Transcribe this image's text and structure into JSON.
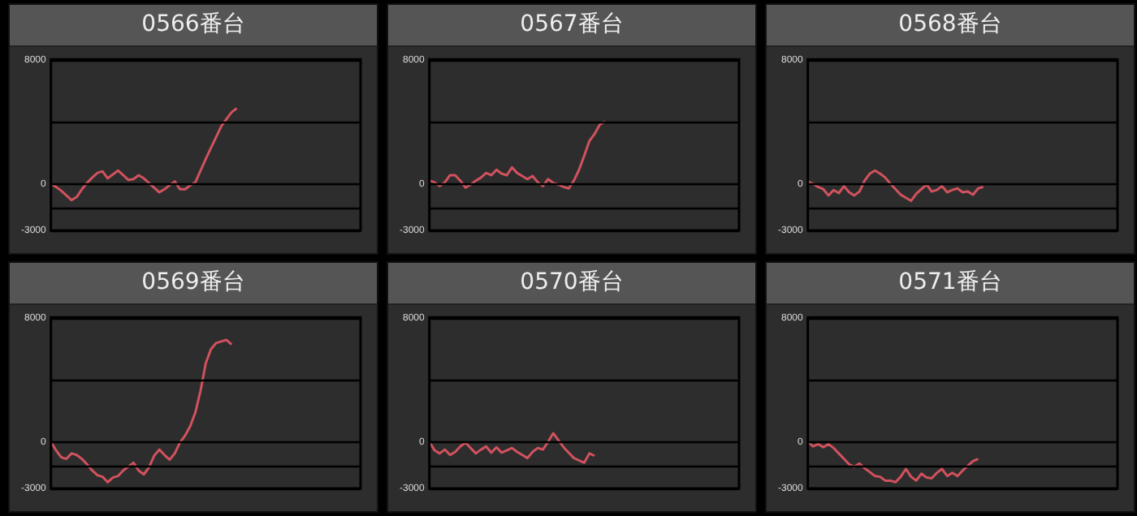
{
  "chart_data": [
    {
      "type": "line",
      "title": "0566番台",
      "categories": [
        null,
        null,
        null,
        null,
        null,
        null,
        null,
        null,
        null,
        null,
        null,
        null,
        null,
        null,
        null,
        null,
        null,
        null,
        null,
        null,
        null,
        null,
        null,
        null,
        null,
        null,
        null,
        null,
        null,
        null,
        null,
        null,
        null,
        null,
        null,
        null,
        null,
        null,
        null,
        null,
        null,
        null,
        null,
        null,
        null,
        null,
        null,
        null,
        null,
        null,
        null,
        null,
        null,
        null,
        null,
        null,
        null,
        null,
        null,
        null,
        null
      ],
      "color": "#d2525e",
      "marker": "none",
      "values": [
        0,
        -200,
        -450,
        -750,
        -1050,
        -850,
        -350,
        50,
        400,
        700,
        800,
        350,
        600,
        850,
        550,
        250,
        300,
        550,
        350,
        50,
        -250,
        -550,
        -350,
        -100,
        150,
        -350,
        -350,
        -100,
        100,
        850,
        1600,
        2300,
        3000,
        3700,
        4150,
        4600,
        4850,
        null,
        null,
        null,
        null,
        null,
        null,
        null,
        null,
        null,
        null,
        null,
        null,
        null,
        null,
        null,
        null,
        null,
        null,
        null,
        null,
        null,
        null,
        null,
        null
      ],
      "ylim": [
        -3000,
        8000
      ],
      "yticks": [
        -3000,
        0,
        8000
      ],
      "ref_lines": [
        {
          "axis": "y",
          "value": 4000,
          "color": "#000000"
        },
        {
          "axis": "y",
          "value": -1500,
          "color": "#000000"
        }
      ],
      "grid": "y",
      "tick_labels": "y"
    },
    {
      "type": "line",
      "title": "0567番台",
      "categories": [
        null,
        null,
        null,
        null,
        null,
        null,
        null,
        null,
        null,
        null,
        null,
        null,
        null,
        null,
        null,
        null,
        null,
        null,
        null,
        null,
        null,
        null,
        null,
        null,
        null,
        null,
        null,
        null,
        null,
        null,
        null,
        null,
        null,
        null,
        null,
        null,
        null,
        null,
        null,
        null,
        null,
        null,
        null,
        null,
        null,
        null,
        null,
        null,
        null,
        null,
        null,
        null,
        null,
        null,
        null,
        null,
        null,
        null,
        null,
        null,
        null
      ],
      "color": "#d2525e",
      "marker": "none",
      "values": [
        200,
        100,
        -150,
        100,
        550,
        550,
        200,
        -250,
        -50,
        200,
        400,
        700,
        550,
        900,
        650,
        550,
        1050,
        700,
        500,
        300,
        500,
        100,
        -150,
        300,
        50,
        -50,
        -200,
        -300,
        200,
        900,
        1800,
        2750,
        3200,
        3800,
        4000,
        null,
        null,
        null,
        null,
        null,
        null,
        null,
        null,
        null,
        null,
        null,
        null,
        null,
        null,
        null,
        null,
        null,
        null,
        null,
        null,
        null,
        null,
        null,
        null,
        null,
        null
      ],
      "ylim": [
        -3000,
        8000
      ],
      "yticks": [
        -3000,
        0,
        8000
      ],
      "ref_lines": [
        {
          "axis": "y",
          "value": 4000,
          "color": "#000000"
        },
        {
          "axis": "y",
          "value": -1500,
          "color": "#000000"
        }
      ],
      "grid": "y",
      "tick_labels": "y"
    },
    {
      "type": "line",
      "title": "0568番台",
      "categories": [
        null,
        null,
        null,
        null,
        null,
        null,
        null,
        null,
        null,
        null,
        null,
        null,
        null,
        null,
        null,
        null,
        null,
        null,
        null,
        null,
        null,
        null,
        null,
        null,
        null,
        null,
        null,
        null,
        null,
        null,
        null,
        null,
        null,
        null,
        null,
        null,
        null,
        null,
        null,
        null,
        null,
        null,
        null,
        null,
        null,
        null,
        null,
        null,
        null,
        null,
        null,
        null,
        null,
        null,
        null,
        null,
        null,
        null,
        null,
        null,
        null
      ],
      "color": "#d2525e",
      "marker": "none",
      "values": [
        150,
        0,
        -200,
        -350,
        -750,
        -400,
        -600,
        -150,
        -550,
        -750,
        -500,
        200,
        650,
        850,
        650,
        400,
        0,
        -350,
        -700,
        -900,
        -1100,
        -650,
        -350,
        -50,
        -500,
        -400,
        -150,
        -550,
        -400,
        -300,
        -550,
        -500,
        -700,
        -300,
        -200,
        null,
        null,
        null,
        null,
        null,
        null,
        null,
        null,
        null,
        null,
        null,
        null,
        null,
        null,
        null,
        null,
        null,
        null,
        null,
        null,
        null,
        null,
        null,
        null,
        null,
        null
      ],
      "ylim": [
        -3000,
        8000
      ],
      "yticks": [
        -3000,
        0,
        8000
      ],
      "ref_lines": [
        {
          "axis": "y",
          "value": 4000,
          "color": "#000000"
        },
        {
          "axis": "y",
          "value": -1500,
          "color": "#000000"
        }
      ],
      "grid": "y",
      "tick_labels": "y"
    },
    {
      "type": "line",
      "title": "0569番台",
      "categories": [
        null,
        null,
        null,
        null,
        null,
        null,
        null,
        null,
        null,
        null,
        null,
        null,
        null,
        null,
        null,
        null,
        null,
        null,
        null,
        null,
        null,
        null,
        null,
        null,
        null,
        null,
        null,
        null,
        null,
        null,
        null,
        null,
        null,
        null,
        null,
        null,
        null,
        null,
        null,
        null,
        null,
        null,
        null,
        null,
        null,
        null,
        null,
        null,
        null,
        null,
        null,
        null,
        null,
        null,
        null,
        null,
        null,
        null,
        null,
        null,
        null
      ],
      "color": "#d2525e",
      "marker": "none",
      "values": [
        0,
        -550,
        -1000,
        -1100,
        -750,
        -850,
        -1100,
        -1450,
        -1850,
        -2150,
        -2250,
        -2600,
        -2300,
        -2200,
        -1850,
        -1600,
        -1350,
        -1850,
        -2100,
        -1650,
        -900,
        -500,
        -850,
        -1150,
        -750,
        -50,
        400,
        1000,
        1900,
        3300,
        5050,
        5950,
        6350,
        6450,
        6550,
        6250,
        null,
        null,
        null,
        null,
        null,
        null,
        null,
        null,
        null,
        null,
        null,
        null,
        null,
        null,
        null,
        null,
        null,
        null,
        null,
        null,
        null,
        null,
        null,
        null,
        null
      ],
      "ylim": [
        -3000,
        8000
      ],
      "yticks": [
        -3000,
        0,
        8000
      ],
      "ref_lines": [
        {
          "axis": "y",
          "value": 4000,
          "color": "#000000"
        },
        {
          "axis": "y",
          "value": -1500,
          "color": "#000000"
        }
      ],
      "grid": "y",
      "tick_labels": "y"
    },
    {
      "type": "line",
      "title": "0570番台",
      "categories": [
        null,
        null,
        null,
        null,
        null,
        null,
        null,
        null,
        null,
        null,
        null,
        null,
        null,
        null,
        null,
        null,
        null,
        null,
        null,
        null,
        null,
        null,
        null,
        null,
        null,
        null,
        null,
        null,
        null,
        null,
        null,
        null,
        null,
        null,
        null,
        null,
        null,
        null,
        null,
        null,
        null,
        null,
        null,
        null,
        null,
        null,
        null,
        null,
        null,
        null,
        null,
        null,
        null,
        null,
        null,
        null,
        null,
        null,
        null,
        null,
        null
      ],
      "color": "#d2525e",
      "marker": "none",
      "values": [
        0,
        -550,
        -750,
        -500,
        -850,
        -650,
        -300,
        -50,
        -400,
        -750,
        -500,
        -300,
        -700,
        -350,
        -700,
        -550,
        -400,
        -650,
        -850,
        -1050,
        -650,
        -400,
        -500,
        0,
        550,
        100,
        -350,
        -700,
        -1050,
        -1200,
        -1350,
        -750,
        -900,
        null,
        null,
        null,
        null,
        null,
        null,
        null,
        null,
        null,
        null,
        null,
        null,
        null,
        null,
        null,
        null,
        null,
        null,
        null,
        null,
        null,
        null,
        null,
        null,
        null,
        null,
        null,
        null
      ],
      "ylim": [
        -3000,
        8000
      ],
      "yticks": [
        -3000,
        0,
        8000
      ],
      "ref_lines": [
        {
          "axis": "y",
          "value": 4000,
          "color": "#000000"
        },
        {
          "axis": "y",
          "value": -1500,
          "color": "#000000"
        }
      ],
      "grid": "y",
      "tick_labels": "y"
    },
    {
      "type": "line",
      "title": "0571番台",
      "categories": [
        null,
        null,
        null,
        null,
        null,
        null,
        null,
        null,
        null,
        null,
        null,
        null,
        null,
        null,
        null,
        null,
        null,
        null,
        null,
        null,
        null,
        null,
        null,
        null,
        null,
        null,
        null,
        null,
        null,
        null,
        null,
        null,
        null,
        null,
        null,
        null,
        null,
        null,
        null,
        null,
        null,
        null,
        null,
        null,
        null,
        null,
        null,
        null,
        null,
        null,
        null,
        null,
        null,
        null,
        null,
        null,
        null,
        null,
        null,
        null,
        null
      ],
      "color": "#d2525e",
      "marker": "none",
      "values": [
        0,
        -300,
        -150,
        -350,
        -150,
        -400,
        -750,
        -1100,
        -1450,
        -1600,
        -1400,
        -1700,
        -1950,
        -2200,
        -2250,
        -2500,
        -2500,
        -2600,
        -2250,
        -1750,
        -2250,
        -2500,
        -2050,
        -2300,
        -2350,
        -2000,
        -1750,
        -2200,
        -2000,
        -2200,
        -1850,
        -1550,
        -1250,
        -1100,
        null,
        null,
        null,
        null,
        null,
        null,
        null,
        null,
        null,
        null,
        null,
        null,
        null,
        null,
        null,
        null,
        null,
        null,
        null,
        null,
        null,
        null,
        null,
        null,
        null,
        null,
        null
      ],
      "ylim": [
        -3000,
        8000
      ],
      "yticks": [
        -3000,
        0,
        8000
      ],
      "ref_lines": [
        {
          "axis": "y",
          "value": 4000,
          "color": "#000000"
        },
        {
          "axis": "y",
          "value": -1500,
          "color": "#000000"
        }
      ],
      "grid": "y",
      "tick_labels": "y"
    }
  ]
}
